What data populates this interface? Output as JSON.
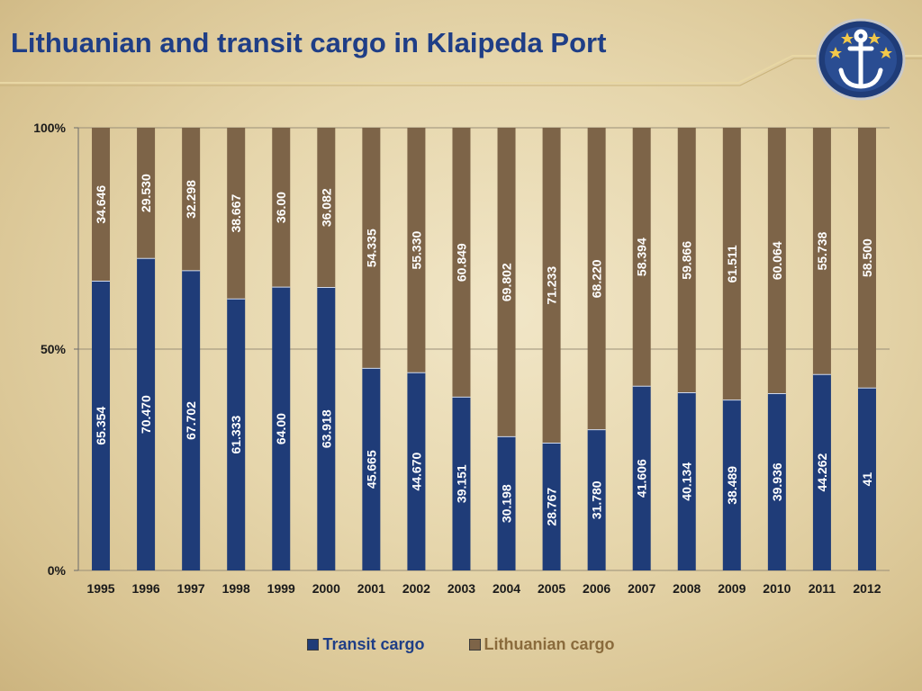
{
  "title": "Lithuanian and transit cargo in Klaipeda Port",
  "colors": {
    "transit": "#1f3c78",
    "lithuanian": "#7d6448",
    "title": "#1f3e86"
  },
  "chart_data": {
    "type": "bar",
    "stacked": "percent",
    "categories": [
      "1995",
      "1996",
      "1997",
      "1998",
      "1999",
      "2000",
      "2001",
      "2002",
      "2003",
      "2004",
      "2005",
      "2006",
      "2007",
      "2008",
      "2009",
      "2010",
      "2011",
      "2012"
    ],
    "series": [
      {
        "name": "Transit cargo",
        "values": [
          65.354,
          70.47,
          67.702,
          61.333,
          64.0,
          63.918,
          45.665,
          44.67,
          39.151,
          30.198,
          28.767,
          31.78,
          41.606,
          40.134,
          38.489,
          39.936,
          44.262,
          41
        ],
        "labels": [
          "65.354",
          "70.470",
          "67.702",
          "61.333",
          "64.00",
          "63.918",
          "45.665",
          "44.670",
          "39.151",
          "30.198",
          "28.767",
          "31.780",
          "41.606",
          "40.134",
          "38.489",
          "39.936",
          "44.262",
          "41"
        ]
      },
      {
        "name": "Lithuanian cargo",
        "values": [
          34.646,
          29.53,
          32.298,
          38.667,
          36.0,
          36.082,
          54.335,
          55.33,
          60.849,
          69.802,
          71.233,
          68.22,
          58.394,
          59.866,
          61.511,
          60.064,
          55.738,
          58.5
        ],
        "labels": [
          "34.646",
          "29.530",
          "32.298",
          "38.667",
          "36.00",
          "36.082",
          "54.335",
          "55.330",
          "60.849",
          "69.802",
          "71.233",
          "68.220",
          "58.394",
          "59.866",
          "61.511",
          "60.064",
          "55.738",
          "58.500"
        ]
      }
    ],
    "y_ticks": [
      "0%",
      "50%",
      "100%"
    ],
    "ylim": [
      0,
      100
    ],
    "grid": true,
    "legend_position": "bottom"
  }
}
